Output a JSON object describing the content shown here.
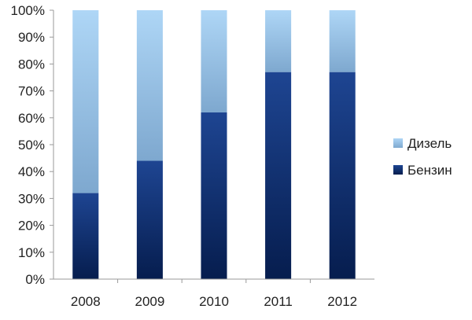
{
  "chart_data": {
    "type": "bar",
    "stacked": true,
    "normalized": true,
    "categories": [
      "2008",
      "2009",
      "2010",
      "2011",
      "2012"
    ],
    "series": [
      {
        "name": "Бензин",
        "values": [
          32,
          44,
          62,
          77,
          77
        ],
        "color": "#0b2a6a"
      },
      {
        "name": "Дизель",
        "values": [
          68,
          56,
          38,
          23,
          23
        ],
        "color": "#9cc6ea"
      }
    ],
    "y_ticks": [
      "0%",
      "10%",
      "20%",
      "30%",
      "40%",
      "50%",
      "60%",
      "70%",
      "80%",
      "90%",
      "100%"
    ],
    "ylim": [
      0,
      100
    ],
    "grid": false,
    "legend_position": "right",
    "legend_order": [
      "Дизель",
      "Бензин"
    ],
    "title": "",
    "xlabel": "",
    "ylabel": ""
  }
}
